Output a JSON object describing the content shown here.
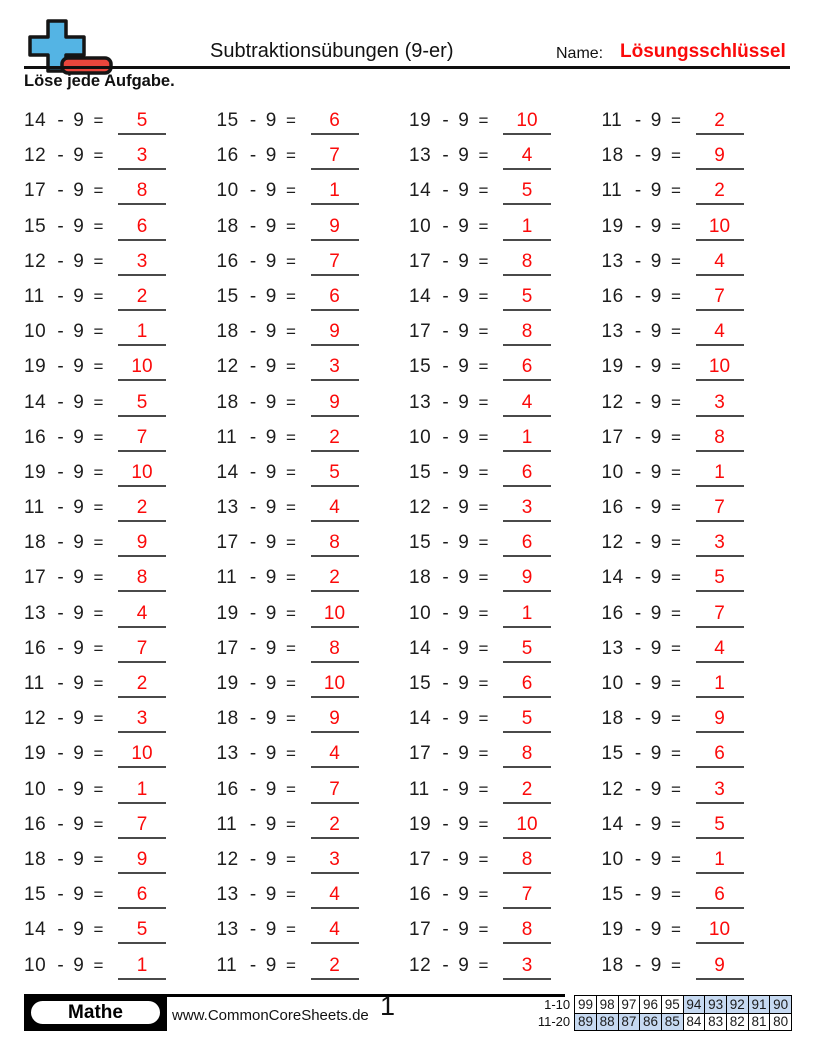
{
  "header": {
    "title": "Subtraktionsübungen (9-er)",
    "name_label": "Name:",
    "name_value": "Lösungsschlüssel",
    "instruction": "Löse jede Aufgabe."
  },
  "logo": {
    "icon": "plus-minus-icon",
    "plus_color": "#54b4e4",
    "minus_color": "#e8463c",
    "outline_color": "#151515"
  },
  "colors": {
    "answer_red": "#fb0a0a",
    "score_shade_blue": "#c6d9f1",
    "underline_gray": "#4a4a4a"
  },
  "problems": {
    "operator": "-",
    "subtrahend": "9",
    "equals": "=",
    "columns": [
      [
        [
          14,
          5
        ],
        [
          12,
          3
        ],
        [
          17,
          8
        ],
        [
          15,
          6
        ],
        [
          12,
          3
        ],
        [
          11,
          2
        ],
        [
          10,
          1
        ],
        [
          19,
          10
        ],
        [
          14,
          5
        ],
        [
          16,
          7
        ],
        [
          19,
          10
        ],
        [
          11,
          2
        ],
        [
          18,
          9
        ],
        [
          17,
          8
        ],
        [
          13,
          4
        ],
        [
          16,
          7
        ],
        [
          11,
          2
        ],
        [
          12,
          3
        ],
        [
          19,
          10
        ],
        [
          10,
          1
        ],
        [
          16,
          7
        ],
        [
          18,
          9
        ],
        [
          15,
          6
        ],
        [
          14,
          5
        ],
        [
          10,
          1
        ]
      ],
      [
        [
          15,
          6
        ],
        [
          16,
          7
        ],
        [
          10,
          1
        ],
        [
          18,
          9
        ],
        [
          16,
          7
        ],
        [
          15,
          6
        ],
        [
          18,
          9
        ],
        [
          12,
          3
        ],
        [
          18,
          9
        ],
        [
          11,
          2
        ],
        [
          14,
          5
        ],
        [
          13,
          4
        ],
        [
          17,
          8
        ],
        [
          11,
          2
        ],
        [
          19,
          10
        ],
        [
          17,
          8
        ],
        [
          19,
          10
        ],
        [
          18,
          9
        ],
        [
          13,
          4
        ],
        [
          16,
          7
        ],
        [
          11,
          2
        ],
        [
          12,
          3
        ],
        [
          13,
          4
        ],
        [
          13,
          4
        ],
        [
          11,
          2
        ]
      ],
      [
        [
          19,
          10
        ],
        [
          13,
          4
        ],
        [
          14,
          5
        ],
        [
          10,
          1
        ],
        [
          17,
          8
        ],
        [
          14,
          5
        ],
        [
          17,
          8
        ],
        [
          15,
          6
        ],
        [
          13,
          4
        ],
        [
          10,
          1
        ],
        [
          15,
          6
        ],
        [
          12,
          3
        ],
        [
          15,
          6
        ],
        [
          18,
          9
        ],
        [
          10,
          1
        ],
        [
          14,
          5
        ],
        [
          15,
          6
        ],
        [
          14,
          5
        ],
        [
          17,
          8
        ],
        [
          11,
          2
        ],
        [
          19,
          10
        ],
        [
          17,
          8
        ],
        [
          16,
          7
        ],
        [
          17,
          8
        ],
        [
          12,
          3
        ]
      ],
      [
        [
          11,
          2
        ],
        [
          18,
          9
        ],
        [
          11,
          2
        ],
        [
          19,
          10
        ],
        [
          13,
          4
        ],
        [
          16,
          7
        ],
        [
          13,
          4
        ],
        [
          19,
          10
        ],
        [
          12,
          3
        ],
        [
          17,
          8
        ],
        [
          10,
          1
        ],
        [
          16,
          7
        ],
        [
          12,
          3
        ],
        [
          14,
          5
        ],
        [
          16,
          7
        ],
        [
          13,
          4
        ],
        [
          10,
          1
        ],
        [
          18,
          9
        ],
        [
          15,
          6
        ],
        [
          12,
          3
        ],
        [
          14,
          5
        ],
        [
          10,
          1
        ],
        [
          15,
          6
        ],
        [
          19,
          10
        ],
        [
          18,
          9
        ]
      ]
    ]
  },
  "footer": {
    "brand": "Mathe",
    "website": "www.CommonCoreSheets.de",
    "page_number": "1",
    "score_table": {
      "rows": [
        {
          "label": "1-10",
          "cells": [
            {
              "value": 99,
              "shaded": false
            },
            {
              "value": 98,
              "shaded": false
            },
            {
              "value": 97,
              "shaded": false
            },
            {
              "value": 96,
              "shaded": false
            },
            {
              "value": 95,
              "shaded": false
            },
            {
              "value": 94,
              "shaded": true
            },
            {
              "value": 93,
              "shaded": true
            },
            {
              "value": 92,
              "shaded": true
            },
            {
              "value": 91,
              "shaded": true
            },
            {
              "value": 90,
              "shaded": true
            }
          ]
        },
        {
          "label": "11-20",
          "cells": [
            {
              "value": 89,
              "shaded": true
            },
            {
              "value": 88,
              "shaded": true
            },
            {
              "value": 87,
              "shaded": true
            },
            {
              "value": 86,
              "shaded": true
            },
            {
              "value": 85,
              "shaded": true
            },
            {
              "value": 84,
              "shaded": false
            },
            {
              "value": 83,
              "shaded": false
            },
            {
              "value": 82,
              "shaded": false
            },
            {
              "value": 81,
              "shaded": false
            },
            {
              "value": 80,
              "shaded": false
            }
          ]
        }
      ]
    }
  }
}
